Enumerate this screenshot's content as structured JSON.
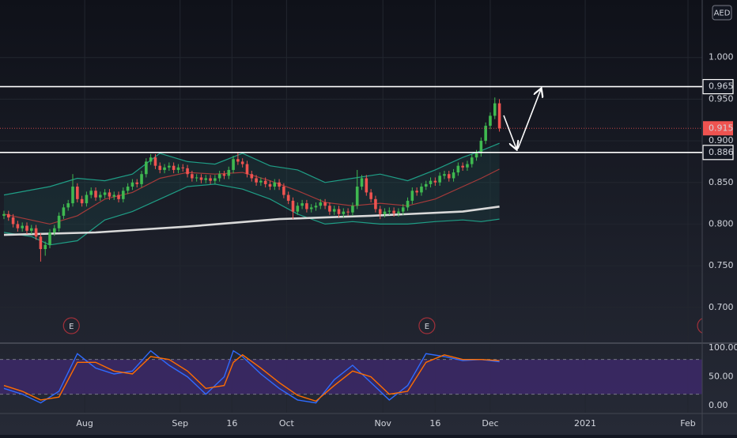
{
  "chart_data": [
    {
      "type": "candlestick",
      "currency": "AED",
      "xlim": [
        -0.86,
        152.2
      ],
      "ylim": [
        0.659,
        1.069
      ],
      "yticks": [
        {
          "value": 1.0,
          "label": "1.000"
        },
        {
          "value": 0.95,
          "label": "0.950"
        },
        {
          "value": 0.9,
          "label": "0.900"
        },
        {
          "value": 0.85,
          "label": "0.850"
        },
        {
          "value": 0.8,
          "label": "0.800"
        },
        {
          "value": 0.75,
          "label": "0.750"
        },
        {
          "value": 0.7,
          "label": "0.700"
        }
      ],
      "up_color": "#3fb950",
      "down_color": "#ef5350",
      "open": [
        0.81,
        0.812,
        0.808,
        0.8,
        0.795,
        0.798,
        0.792,
        0.795,
        0.785,
        0.77,
        0.775,
        0.79,
        0.795,
        0.81,
        0.82,
        0.825,
        0.845,
        0.83,
        0.825,
        0.835,
        0.84,
        0.832,
        0.835,
        0.838,
        0.833,
        0.835,
        0.83,
        0.84,
        0.845,
        0.85,
        0.848,
        0.86,
        0.875,
        0.88,
        0.87,
        0.865,
        0.868,
        0.87,
        0.865,
        0.868,
        0.867,
        0.86,
        0.855,
        0.856,
        0.853,
        0.855,
        0.852,
        0.855,
        0.86,
        0.858,
        0.865,
        0.878,
        0.875,
        0.872,
        0.86,
        0.855,
        0.85,
        0.852,
        0.848,
        0.845,
        0.85,
        0.845,
        0.835,
        0.828,
        0.815,
        0.822,
        0.825,
        0.818,
        0.82,
        0.822,
        0.826,
        0.822,
        0.815,
        0.818,
        0.812,
        0.815,
        0.814,
        0.822,
        0.845,
        0.855,
        0.838,
        0.83,
        0.818,
        0.812,
        0.815,
        0.816,
        0.813,
        0.815,
        0.82,
        0.828,
        0.84,
        0.838,
        0.845,
        0.848,
        0.852,
        0.85,
        0.858,
        0.86,
        0.855,
        0.862,
        0.87,
        0.868,
        0.872,
        0.88,
        0.885,
        0.9,
        0.918,
        0.93,
        0.945
      ],
      "high": [
        0.816,
        0.816,
        0.812,
        0.804,
        0.802,
        0.802,
        0.799,
        0.799,
        0.789,
        0.779,
        0.794,
        0.799,
        0.814,
        0.824,
        0.829,
        0.86,
        0.849,
        0.834,
        0.839,
        0.844,
        0.844,
        0.839,
        0.842,
        0.842,
        0.839,
        0.839,
        0.844,
        0.849,
        0.854,
        0.854,
        0.864,
        0.879,
        0.884,
        0.884,
        0.874,
        0.872,
        0.874,
        0.874,
        0.872,
        0.872,
        0.871,
        0.864,
        0.86,
        0.86,
        0.859,
        0.859,
        0.859,
        0.864,
        0.864,
        0.869,
        0.882,
        0.886,
        0.879,
        0.876,
        0.864,
        0.859,
        0.856,
        0.856,
        0.852,
        0.854,
        0.854,
        0.849,
        0.839,
        0.832,
        0.826,
        0.829,
        0.829,
        0.824,
        0.826,
        0.83,
        0.83,
        0.826,
        0.822,
        0.822,
        0.819,
        0.819,
        0.826,
        0.865,
        0.859,
        0.859,
        0.842,
        0.834,
        0.822,
        0.819,
        0.82,
        0.82,
        0.819,
        0.824,
        0.832,
        0.844,
        0.844,
        0.849,
        0.852,
        0.856,
        0.856,
        0.862,
        0.864,
        0.864,
        0.866,
        0.874,
        0.874,
        0.876,
        0.884,
        0.889,
        0.904,
        0.922,
        0.934,
        0.952,
        0.95
      ],
      "low": [
        0.806,
        0.804,
        0.796,
        0.791,
        0.791,
        0.788,
        0.788,
        0.781,
        0.755,
        0.762,
        0.771,
        0.786,
        0.791,
        0.806,
        0.816,
        0.821,
        0.826,
        0.821,
        0.821,
        0.831,
        0.828,
        0.828,
        0.831,
        0.829,
        0.829,
        0.826,
        0.826,
        0.836,
        0.841,
        0.844,
        0.844,
        0.856,
        0.871,
        0.866,
        0.861,
        0.861,
        0.864,
        0.861,
        0.861,
        0.863,
        0.856,
        0.851,
        0.851,
        0.849,
        0.849,
        0.848,
        0.848,
        0.851,
        0.854,
        0.854,
        0.861,
        0.871,
        0.868,
        0.856,
        0.851,
        0.846,
        0.846,
        0.844,
        0.841,
        0.841,
        0.841,
        0.831,
        0.824,
        0.806,
        0.811,
        0.818,
        0.814,
        0.814,
        0.816,
        0.818,
        0.818,
        0.811,
        0.811,
        0.808,
        0.808,
        0.81,
        0.81,
        0.818,
        0.841,
        0.834,
        0.826,
        0.814,
        0.806,
        0.808,
        0.811,
        0.809,
        0.809,
        0.811,
        0.816,
        0.824,
        0.834,
        0.834,
        0.841,
        0.844,
        0.846,
        0.846,
        0.854,
        0.851,
        0.851,
        0.858,
        0.864,
        0.864,
        0.868,
        0.876,
        0.881,
        0.896,
        0.914,
        0.926,
        0.911
      ],
      "close": [
        0.812,
        0.808,
        0.8,
        0.795,
        0.798,
        0.792,
        0.795,
        0.785,
        0.77,
        0.775,
        0.79,
        0.795,
        0.81,
        0.82,
        0.825,
        0.845,
        0.83,
        0.825,
        0.835,
        0.84,
        0.832,
        0.835,
        0.838,
        0.833,
        0.835,
        0.83,
        0.84,
        0.845,
        0.85,
        0.848,
        0.86,
        0.875,
        0.88,
        0.87,
        0.865,
        0.868,
        0.87,
        0.865,
        0.868,
        0.867,
        0.86,
        0.855,
        0.856,
        0.853,
        0.855,
        0.852,
        0.855,
        0.86,
        0.858,
        0.865,
        0.878,
        0.875,
        0.872,
        0.86,
        0.855,
        0.85,
        0.852,
        0.848,
        0.845,
        0.85,
        0.845,
        0.835,
        0.828,
        0.815,
        0.822,
        0.825,
        0.818,
        0.82,
        0.822,
        0.826,
        0.822,
        0.815,
        0.818,
        0.812,
        0.815,
        0.814,
        0.822,
        0.845,
        0.855,
        0.838,
        0.83,
        0.818,
        0.812,
        0.815,
        0.816,
        0.813,
        0.815,
        0.82,
        0.828,
        0.84,
        0.838,
        0.845,
        0.848,
        0.852,
        0.85,
        0.858,
        0.86,
        0.855,
        0.862,
        0.87,
        0.868,
        0.872,
        0.88,
        0.885,
        0.9,
        0.918,
        0.93,
        0.945,
        0.915
      ],
      "band_fill": "#1f8f7a",
      "lines": [
        {
          "color": "#1f9e86",
          "x": [
            0,
            10,
            16,
            22,
            28,
            34,
            40,
            46,
            52,
            58,
            64,
            70,
            76,
            82,
            88,
            94,
            100,
            104,
            108
          ],
          "values": [
            0.835,
            0.845,
            0.855,
            0.852,
            0.86,
            0.885,
            0.875,
            0.872,
            0.885,
            0.87,
            0.865,
            0.85,
            0.855,
            0.86,
            0.852,
            0.865,
            0.88,
            0.888,
            0.897
          ]
        },
        {
          "color": "#1f9e86",
          "x": [
            0,
            6,
            10,
            16,
            22,
            28,
            34,
            40,
            46,
            52,
            58,
            64,
            70,
            76,
            82,
            88,
            94,
            100,
            104,
            108
          ],
          "values": [
            0.79,
            0.785,
            0.775,
            0.78,
            0.805,
            0.815,
            0.83,
            0.845,
            0.848,
            0.842,
            0.83,
            0.812,
            0.8,
            0.803,
            0.8,
            0.8,
            0.803,
            0.805,
            0.803,
            0.806
          ]
        },
        {
          "color": "#a53a3a",
          "x": [
            0,
            10,
            16,
            22,
            28,
            34,
            40,
            46,
            52,
            58,
            64,
            70,
            76,
            82,
            88,
            94,
            100,
            104,
            108
          ],
          "values": [
            0.812,
            0.8,
            0.81,
            0.83,
            0.838,
            0.855,
            0.862,
            0.86,
            0.862,
            0.852,
            0.84,
            0.826,
            0.822,
            0.825,
            0.822,
            0.83,
            0.845,
            0.855,
            0.866
          ]
        },
        {
          "color": "#d9d9d9",
          "x": [
            0,
            20,
            40,
            60,
            80,
            100,
            108
          ],
          "values": [
            0.787,
            0.79,
            0.797,
            0.806,
            0.81,
            0.815,
            0.821
          ]
        }
      ],
      "levels": [
        {
          "value": 0.965,
          "label": "0.965"
        },
        {
          "value": 0.886,
          "label": "0.886"
        }
      ],
      "last_price": {
        "value": 0.915,
        "label": "0.915"
      },
      "events": [
        {
          "x": 14.7,
          "label": "E"
        },
        {
          "x": 92.2,
          "label": "E"
        },
        {
          "x": 152.9,
          "label": "E"
        }
      ]
    },
    {
      "type": "line",
      "xlim": [
        -0.86,
        152.2
      ],
      "ylim": [
        -12,
        105.5
      ],
      "yticks": [
        {
          "value": 100,
          "label": "100.00"
        },
        {
          "value": 50,
          "label": "50.00"
        },
        {
          "value": 0,
          "label": "0.00"
        }
      ],
      "xticks": [
        {
          "value": 17.6,
          "label": "Aug"
        },
        {
          "value": 38.4,
          "label": "Sep"
        },
        {
          "value": 49.7,
          "label": "16"
        },
        {
          "value": 61.6,
          "label": "Oct"
        },
        {
          "value": 82.6,
          "label": "Nov"
        },
        {
          "value": 94.0,
          "label": "16"
        },
        {
          "value": 106.0,
          "label": "Dec"
        },
        {
          "value": 126.7,
          "label": "2021"
        },
        {
          "value": 149.1,
          "label": "Feb"
        }
      ],
      "band": [
        20,
        80
      ],
      "band_color": "#4b2a86",
      "series": [
        {
          "color": "#2f6bff",
          "x": [
            0,
            4,
            8,
            12,
            16,
            20,
            24,
            28,
            32,
            36,
            40,
            44,
            48,
            50,
            52,
            56,
            60,
            64,
            68,
            72,
            76,
            80,
            84,
            88,
            92,
            96,
            100,
            104,
            108
          ],
          "values": [
            30,
            20,
            5,
            25,
            90,
            65,
            55,
            60,
            95,
            70,
            50,
            20,
            50,
            95,
            85,
            55,
            30,
            10,
            5,
            45,
            70,
            40,
            10,
            35,
            90,
            85,
            78,
            80,
            76
          ]
        },
        {
          "color": "#ff6d00",
          "x": [
            0,
            4,
            8,
            12,
            16,
            20,
            24,
            28,
            32,
            36,
            40,
            44,
            48,
            50,
            52,
            56,
            60,
            64,
            68,
            72,
            76,
            80,
            84,
            88,
            92,
            96,
            100,
            104,
            108
          ],
          "values": [
            35,
            25,
            10,
            15,
            75,
            75,
            60,
            55,
            85,
            80,
            60,
            30,
            35,
            75,
            88,
            65,
            40,
            18,
            8,
            35,
            60,
            50,
            20,
            25,
            75,
            88,
            80,
            80,
            78
          ]
        }
      ]
    }
  ]
}
